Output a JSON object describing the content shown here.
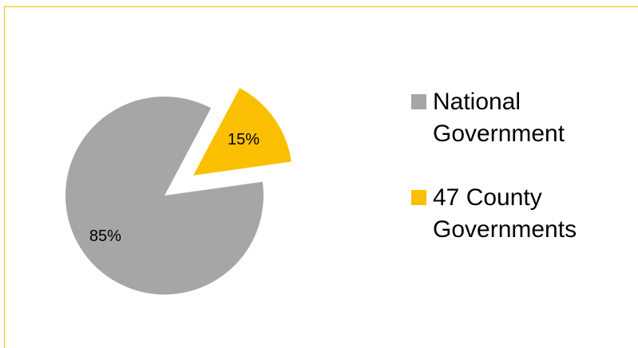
{
  "chart_data": {
    "type": "pie",
    "title": "",
    "slices": [
      {
        "name": "National Government",
        "value": 85,
        "label": "85%",
        "color": "#a6a6a6"
      },
      {
        "name": "47 County Governments",
        "value": 15,
        "label": "15%",
        "color": "#fac000"
      }
    ],
    "exploded_slice": "47 County Governments",
    "legend_position": "right"
  },
  "legend": {
    "items": [
      {
        "label": "National Government",
        "color": "#a6a6a6"
      },
      {
        "label": "47 County Governments",
        "color": "#fac000"
      }
    ]
  },
  "frame_color": "#f5c400"
}
